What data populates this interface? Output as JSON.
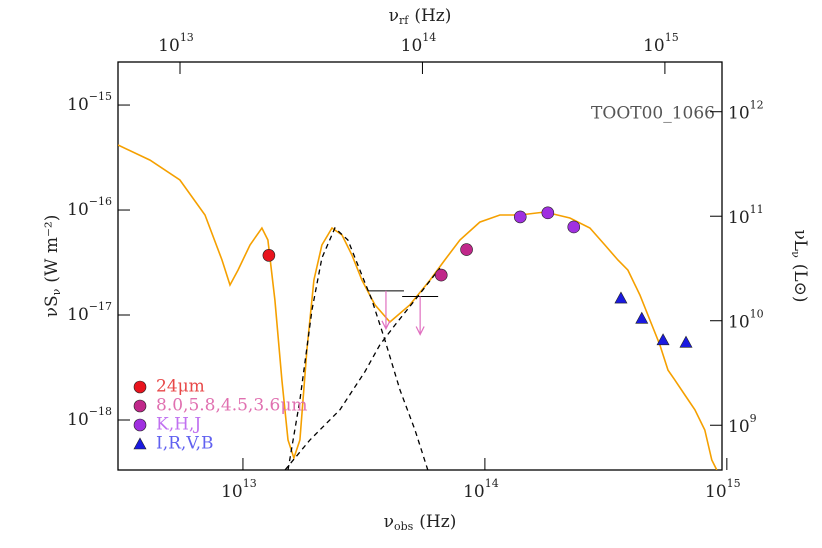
{
  "chart_data": {
    "type": "sed",
    "source_label": "TOOT00_1066",
    "xlabel": {
      "symbol": "ν",
      "sub": "obs",
      "unit": "(Hz)"
    },
    "x2label": {
      "symbol": "ν",
      "sub": "rf",
      "unit": "(Hz)"
    },
    "ylabel": {
      "symbol": "νS",
      "sub": "ν",
      "unit": "(W m⁻²)"
    },
    "y2label": {
      "symbol": "νL",
      "sub": "ν",
      "unit": "(L⊙)"
    },
    "log_x": true,
    "log_y": true,
    "xlim": [
      3045000000000.0,
      955000000000000.0
    ],
    "xticks": [
      {
        "value": 10000000000000.0,
        "label": "10",
        "exponent": "13"
      },
      {
        "value": 100000000000000.0,
        "label": "10",
        "exponent": "14"
      },
      {
        "value": 1000000000000000.0,
        "label": "10",
        "exponent": "15"
      }
    ],
    "x2lim": [
      5550000000000.0,
      1720000000000000.0
    ],
    "x2ticks": [
      {
        "value": 10000000000000.0,
        "label": "10",
        "exponent": "13"
      },
      {
        "value": 100000000000000.0,
        "label": "10",
        "exponent": "14"
      },
      {
        "value": 1000000000000000.0,
        "label": "10",
        "exponent": "15"
      }
    ],
    "ylim": [
      3.34e-19,
      2.57e-15
    ],
    "yticks": [
      {
        "value": 1e-18,
        "label": "10",
        "exponent": "−18"
      },
      {
        "value": 1e-17,
        "label": "10",
        "exponent": "−17"
      },
      {
        "value": 1e-16,
        "label": "10",
        "exponent": "−16"
      },
      {
        "value": 1e-15,
        "label": "10",
        "exponent": "−15"
      }
    ],
    "y2lim": [
      373000000.0,
      2990000000000.0
    ],
    "y2ticks": [
      {
        "value": 1000000000.0,
        "label": "10",
        "exponent": "9"
      },
      {
        "value": 10000000000.0,
        "label": "10",
        "exponent": "10"
      },
      {
        "value": 100000000000.0,
        "label": "10",
        "exponent": "11"
      },
      {
        "value": 1000000000000.0,
        "label": "10",
        "exponent": "12"
      }
    ],
    "series": [
      {
        "name": "24μm",
        "color": "#e8141e",
        "label_color": "#e84848",
        "marker": "circle",
        "x": [
          12800000000000.0
        ],
        "values": [
          3.7e-17
        ]
      },
      {
        "name": "8.0,5.8,4.5,3.6μm",
        "color": "#c0288a",
        "label_color": "#e070b0",
        "marker": "circle",
        "x": [
          66000000000000.0,
          84000000000000.0
        ],
        "values": [
          2.4e-17,
          4.2e-17
        ]
      },
      {
        "name": "K,H,J",
        "color": "#a030e0",
        "label_color": "#c070f0",
        "marker": "circle",
        "x": [
          140000000000000.0,
          182000000000000.0,
          233000000000000.0
        ],
        "values": [
          8.6e-17,
          9.4e-17,
          6.9e-17
        ]
      },
      {
        "name": "I,R,V,B",
        "color": "#1a1ae0",
        "label_color": "#6060f0",
        "marker": "triangle",
        "x": [
          365000000000000.0,
          445000000000000.0,
          545000000000000.0,
          678000000000000.0
        ],
        "values": [
          1.45e-17,
          9.3e-18,
          5.8e-18,
          5.5e-18
        ]
      }
    ],
    "upper_limits": {
      "color": "#e070c0",
      "x": [
        39000000000000.0,
        54000000000000.0
      ],
      "values": [
        1.7e-17,
        1.5e-17
      ]
    },
    "lines": [
      {
        "color": "#f5a000",
        "dash": false,
        "x": [
          3045000000000.0,
          4130000000000.0,
          5490000000000.0,
          6970000000000.0,
          8190000000000.0,
          8840000000000.0,
          9540000000000.0,
          10690000000000.0,
          11980000000000.0,
          12680000000000.0,
          13560000000000.0,
          14490000000000.0,
          15350000000000.0,
          16240000000000.0,
          17200000000000.0,
          18380000000000.0,
          19650000000000.0,
          21210000000000.0,
          23330000000000.0,
          25660000000000.0,
          28210000000000.0,
          31020000000000.0,
          35120000000000.0,
          40500000000000.0,
          49000000000000.0,
          59300000000000.0,
          68300000000000.0,
          78800000000000.0,
          95300000000000.0,
          115300000000000.0,
          139500000000000.0,
          177000000000000.0,
          224500000000000.0,
          271600000000000.0,
          313300000000000.0,
          354500000000000.0,
          390000000000000.0,
          437000000000000.0,
          481000000000000.0,
          529000000000000.0,
          571000000000000.0,
          610000000000000.0,
          671000000000000.0,
          738000000000000.0,
          811000000000000.0,
          867000000000000.0,
          909000000000000.0
        ],
        "values": [
          4.16e-16,
          2.99e-16,
          1.93e-16,
          8.96e-17,
          3.34e-17,
          1.93e-17,
          2.68e-17,
          4.64e-17,
          6.74e-17,
          5.18e-17,
          1.39e-17,
          2.4e-18,
          6.45e-19,
          4.35e-19,
          6.45e-19,
          4.64e-18,
          2.15e-17,
          4.64e-17,
          6.74e-17,
          5.78e-17,
          3.73e-17,
          2.15e-17,
          1.25e-17,
          8.58e-18,
          1.25e-17,
          2.15e-17,
          3.34e-17,
          5.18e-17,
          7.68e-17,
          8.96e-17,
          8.96e-17,
          9.57e-17,
          8.39e-17,
          6.74e-17,
          4.64e-17,
          3.34e-17,
          2.68e-17,
          1.55e-17,
          8.96e-18,
          5.18e-18,
          2.99e-18,
          2.4e-18,
          1.73e-18,
          1.25e-18,
          8.03e-19,
          4.16e-19,
          3.34e-19
        ]
      },
      {
        "color": "#000000",
        "dash": true,
        "x": [
          15350000000000.0,
          17200000000000.0,
          19290000000000.0,
          21210000000000.0,
          24000000000000.0,
          27160000000000.0,
          30450000000000.0,
          34120000000000.0,
          38630000000000.0,
          44600000000000.0,
          51400000000000.0,
          58100000000000.0
        ],
        "values": [
          3.34e-19,
          1.55e-18,
          1.12e-17,
          3.49e-17,
          6.74e-17,
          5.18e-17,
          2.68e-17,
          1.39e-17,
          5.78e-18,
          1.93e-18,
          8.03e-19,
          3.34e-19
        ]
      },
      {
        "color": "#000000",
        "dash": true,
        "x": [
          14920000000000.0,
          18920000000000.0,
          25170000000000.0,
          31900000000000.0,
          36800000000000.0,
          42500000000000.0,
          51400000000000.0,
          65200000000000.0
        ],
        "values": [
          3.34e-19,
          6.45e-19,
          1.25e-18,
          2.87e-18,
          5.18e-18,
          8.03e-18,
          1.39e-17,
          2.8e-17
        ]
      }
    ]
  }
}
